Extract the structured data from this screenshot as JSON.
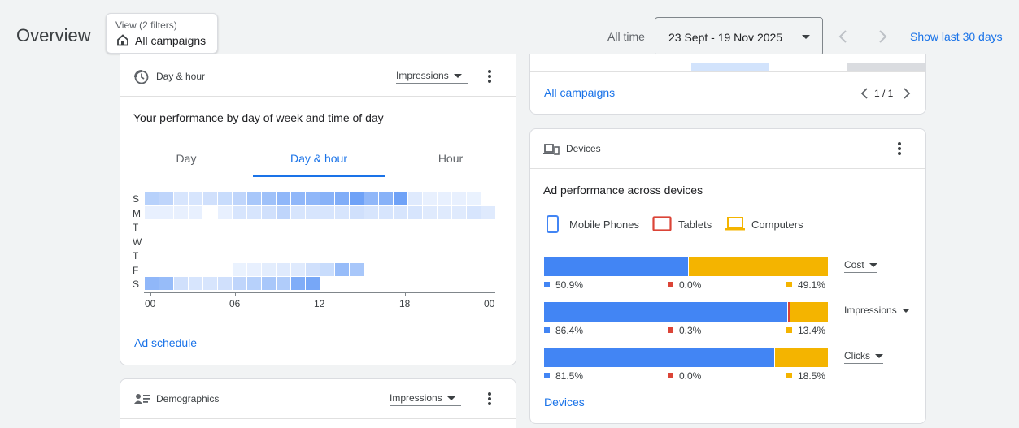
{
  "header": {
    "title": "Overview",
    "view_filter_label": "View (2 filters)",
    "view_value": "All campaigns",
    "all_time_label": "All time",
    "date_range": "23 Sept - 19 Nov 2025",
    "show_last_label": "Show last 30 days"
  },
  "day_hour_card": {
    "title": "Day & hour",
    "metric": "Impressions",
    "heading": "Your performance by day of week and time of day",
    "tabs": [
      "Day",
      "Day & hour",
      "Hour"
    ],
    "active_tab": "Day & hour",
    "day_labels": [
      "S",
      "M",
      "T",
      "W",
      "T",
      "F",
      "S"
    ],
    "hour_labels": [
      "00",
      "06",
      "12",
      "18",
      "00"
    ],
    "link": "Ad schedule",
    "heatmap_intensity": [
      [
        0.35,
        0.3,
        0.15,
        0.15,
        0.2,
        0.25,
        0.3,
        0.45,
        0.5,
        0.6,
        0.6,
        0.6,
        0.65,
        0.7,
        0.8,
        0.6,
        0.65,
        0.8,
        0.1,
        0.05,
        0.05,
        0.05,
        0.03,
        0
      ],
      [
        0.05,
        0.05,
        0.05,
        0.05,
        0,
        0.05,
        0.15,
        0.15,
        0.2,
        0.3,
        0.15,
        0.15,
        0.15,
        0.15,
        0.2,
        0.15,
        0.15,
        0.15,
        0.15,
        0.1,
        0.1,
        0.1,
        0.15,
        0.1
      ],
      [
        0,
        0,
        0,
        0,
        0,
        0,
        0,
        0,
        0,
        0,
        0,
        0,
        0,
        0,
        0,
        0,
        0,
        0,
        0,
        0,
        0,
        0,
        0,
        0
      ],
      [
        0,
        0,
        0,
        0,
        0,
        0,
        0,
        0,
        0,
        0,
        0,
        0,
        0,
        0,
        0,
        0,
        0,
        0,
        0,
        0,
        0,
        0,
        0,
        0
      ],
      [
        0,
        0,
        0,
        0,
        0,
        0,
        0,
        0,
        0,
        0,
        0,
        0,
        0,
        0,
        0,
        0,
        0,
        0,
        0,
        0,
        0,
        0,
        0,
        0
      ],
      [
        0,
        0,
        0,
        0,
        0,
        0,
        0.03,
        0.05,
        0.08,
        0.1,
        0.1,
        0.2,
        0.25,
        0.55,
        0.45,
        0,
        0,
        0,
        0,
        0,
        0,
        0,
        0,
        0
      ],
      [
        0.6,
        0.55,
        0.2,
        0.15,
        0.15,
        0.2,
        0.3,
        0.35,
        0.45,
        0.4,
        0.7,
        0.75,
        0,
        0,
        0,
        0,
        0,
        0,
        0,
        0,
        0,
        0,
        0,
        0
      ]
    ]
  },
  "demographics_card": {
    "title": "Demographics",
    "metric": "Impressions"
  },
  "campaigns_card": {
    "link": "All campaigns",
    "pager": "1 / 1"
  },
  "devices_card": {
    "title": "Devices",
    "heading": "Ad performance across devices",
    "legend": [
      {
        "label": "Mobile Phones",
        "color": "#4285f4"
      },
      {
        "label": "Tablets",
        "color": "#db4437"
      },
      {
        "label": "Computers",
        "color": "#f4b400"
      }
    ],
    "rows": [
      {
        "metric": "Cost",
        "mobile": 50.9,
        "tablet": 0.0,
        "computer": 49.1,
        "mobile_label": "50.9%",
        "tablet_label": "0.0%",
        "computer_label": "49.1%"
      },
      {
        "metric": "Impressions",
        "mobile": 86.4,
        "tablet": 0.3,
        "computer": 13.4,
        "mobile_label": "86.4%",
        "tablet_label": "0.3%",
        "computer_label": "13.4%"
      },
      {
        "metric": "Clicks",
        "mobile": 81.5,
        "tablet": 0.0,
        "computer": 18.5,
        "mobile_label": "81.5%",
        "tablet_label": "0.0%",
        "computer_label": "18.5%"
      }
    ],
    "link": "Devices"
  },
  "colors": {
    "accent": "#1a73e8",
    "mobile": "#4285f4",
    "tablet": "#db4437",
    "computer": "#f4b400"
  }
}
